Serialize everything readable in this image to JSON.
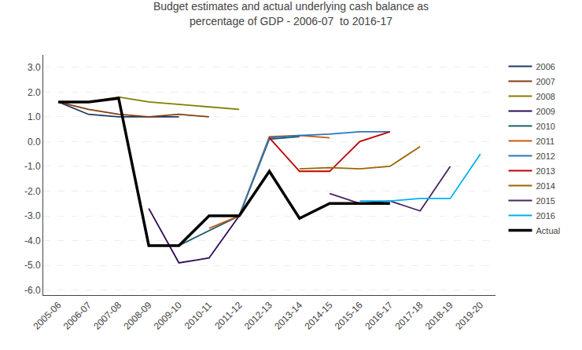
{
  "chart_data": {
    "type": "line",
    "title": "Budget estimates and actual underlying cash balance as\npercentage of GDP - 2006-07  to 2016-17",
    "categories": [
      "2005-06",
      "2006-07",
      "2007-08",
      "2008-09",
      "2009-10",
      "2010-11",
      "2011-12",
      "2012-13",
      "2013-14",
      "2014-15",
      "2015-16",
      "2016-17",
      "2017-18",
      "2018-19",
      "2019-20"
    ],
    "series": [
      {
        "name": "2006",
        "color": "#1F3864",
        "values": [
          1.6,
          1.1,
          1.0,
          1.0,
          1.0,
          null,
          null,
          null,
          null,
          null,
          null,
          null,
          null,
          null,
          null
        ]
      },
      {
        "name": "2007",
        "color": "#843C0C",
        "values": [
          1.6,
          1.3,
          1.1,
          1.0,
          1.1,
          1.0,
          null,
          null,
          null,
          null,
          null,
          null,
          null,
          null,
          null
        ]
      },
      {
        "name": "2008",
        "color": "#7F7F00",
        "values": [
          null,
          1.6,
          1.8,
          1.6,
          1.5,
          1.4,
          1.3,
          null,
          null,
          null,
          null,
          null,
          null,
          null,
          null
        ]
      },
      {
        "name": "2009",
        "color": "#2E0854",
        "values": [
          null,
          null,
          null,
          -2.7,
          -4.9,
          -4.7,
          -3.0,
          null,
          null,
          null,
          null,
          null,
          null,
          null,
          null
        ]
      },
      {
        "name": "2010",
        "color": "#1F5C6B",
        "values": [
          null,
          null,
          null,
          null,
          -4.2,
          -3.6,
          -3.0,
          0.1,
          0.2,
          null,
          null,
          null,
          null,
          null,
          null
        ]
      },
      {
        "name": "2011",
        "color": "#C55A11",
        "values": [
          null,
          null,
          null,
          null,
          null,
          -3.5,
          -3.0,
          0.2,
          0.25,
          0.15,
          null,
          null,
          null,
          null,
          null
        ]
      },
      {
        "name": "2012",
        "color": "#2E75B6",
        "values": [
          null,
          null,
          null,
          null,
          null,
          null,
          -3.0,
          0.15,
          0.25,
          0.3,
          0.4,
          0.4,
          null,
          null,
          null
        ]
      },
      {
        "name": "2013",
        "color": "#C00000",
        "values": [
          null,
          null,
          null,
          null,
          null,
          null,
          null,
          0.15,
          -1.2,
          -1.2,
          0.0,
          0.4,
          null,
          null,
          null
        ]
      },
      {
        "name": "2014",
        "color": "#9C6500",
        "values": [
          null,
          null,
          null,
          null,
          null,
          null,
          null,
          null,
          -1.1,
          -1.05,
          -1.1,
          -1.0,
          -0.2,
          null,
          null
        ]
      },
      {
        "name": "2015",
        "color": "#4A235A",
        "values": [
          null,
          null,
          null,
          null,
          null,
          null,
          null,
          null,
          null,
          -2.1,
          -2.5,
          -2.4,
          -2.8,
          -1.0,
          null
        ]
      },
      {
        "name": "2016",
        "color": "#00B0F0",
        "values": [
          null,
          null,
          null,
          null,
          null,
          null,
          null,
          null,
          null,
          null,
          -2.4,
          -2.4,
          -2.3,
          -2.3,
          -0.5
        ]
      },
      {
        "name": "Actual",
        "color": "#000000",
        "values": [
          1.6,
          1.6,
          1.75,
          -4.2,
          -4.2,
          -3.0,
          -3.0,
          -1.2,
          -3.1,
          -2.5,
          -2.5,
          -2.5,
          null,
          null,
          null
        ]
      }
    ],
    "ylim": [
      -6.2,
      3.5
    ],
    "yticks": [
      {
        "value": -6.0,
        "label": "-6.0"
      },
      {
        "value": -5.0,
        "label": "-5.0"
      },
      {
        "value": -4.0,
        "label": "-4.0"
      },
      {
        "value": -3.0,
        "label": "-3.0"
      },
      {
        "value": -2.0,
        "label": "-2.0"
      },
      {
        "value": -1.0,
        "label": "-1.0"
      },
      {
        "value": 0.0,
        "label": "0.0"
      },
      {
        "value": 1.0,
        "label": "1.0"
      },
      {
        "value": 2.0,
        "label": "2.0"
      },
      {
        "value": 3.0,
        "label": "3.0"
      }
    ],
    "grid": true,
    "legend": "right"
  }
}
